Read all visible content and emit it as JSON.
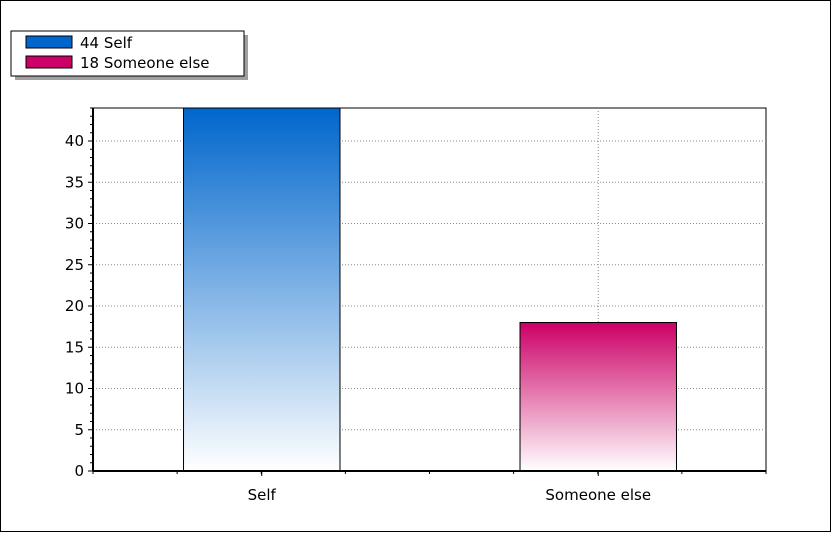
{
  "chart_data": {
    "type": "bar",
    "categories": [
      "Self",
      "Someone else"
    ],
    "series": [
      {
        "values": [
          44,
          18
        ]
      }
    ],
    "colors": [
      "#0066cc",
      "#cc0066"
    ],
    "legend": {
      "placement": "top-left",
      "entries": [
        {
          "label": "44 Self",
          "color": "#0066cc"
        },
        {
          "label": "18 Someone else",
          "color": "#cc0066"
        }
      ]
    },
    "ylim": [
      0,
      44
    ],
    "yticks": [
      0,
      5,
      10,
      15,
      20,
      25,
      30,
      35,
      40
    ],
    "grid": true,
    "title": "",
    "xlabel": "",
    "ylabel": ""
  }
}
